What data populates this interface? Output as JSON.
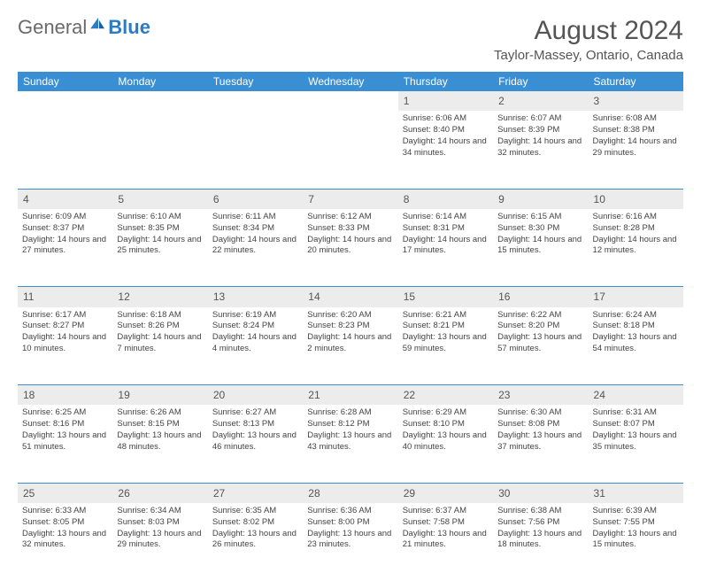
{
  "logo": {
    "text1": "General",
    "text2": "Blue"
  },
  "title": "August 2024",
  "location": "Taylor-Massey, Ontario, Canada",
  "colors": {
    "header_bg": "#3a8fd4",
    "daynum_bg": "#ececec",
    "text": "#444444"
  },
  "weekdays": [
    "Sunday",
    "Monday",
    "Tuesday",
    "Wednesday",
    "Thursday",
    "Friday",
    "Saturday"
  ],
  "weeks": [
    [
      null,
      null,
      null,
      null,
      {
        "n": "1",
        "sr": "6:06 AM",
        "ss": "8:40 PM",
        "dl": "14 hours and 34 minutes."
      },
      {
        "n": "2",
        "sr": "6:07 AM",
        "ss": "8:39 PM",
        "dl": "14 hours and 32 minutes."
      },
      {
        "n": "3",
        "sr": "6:08 AM",
        "ss": "8:38 PM",
        "dl": "14 hours and 29 minutes."
      }
    ],
    [
      {
        "n": "4",
        "sr": "6:09 AM",
        "ss": "8:37 PM",
        "dl": "14 hours and 27 minutes."
      },
      {
        "n": "5",
        "sr": "6:10 AM",
        "ss": "8:35 PM",
        "dl": "14 hours and 25 minutes."
      },
      {
        "n": "6",
        "sr": "6:11 AM",
        "ss": "8:34 PM",
        "dl": "14 hours and 22 minutes."
      },
      {
        "n": "7",
        "sr": "6:12 AM",
        "ss": "8:33 PM",
        "dl": "14 hours and 20 minutes."
      },
      {
        "n": "8",
        "sr": "6:14 AM",
        "ss": "8:31 PM",
        "dl": "14 hours and 17 minutes."
      },
      {
        "n": "9",
        "sr": "6:15 AM",
        "ss": "8:30 PM",
        "dl": "14 hours and 15 minutes."
      },
      {
        "n": "10",
        "sr": "6:16 AM",
        "ss": "8:28 PM",
        "dl": "14 hours and 12 minutes."
      }
    ],
    [
      {
        "n": "11",
        "sr": "6:17 AM",
        "ss": "8:27 PM",
        "dl": "14 hours and 10 minutes."
      },
      {
        "n": "12",
        "sr": "6:18 AM",
        "ss": "8:26 PM",
        "dl": "14 hours and 7 minutes."
      },
      {
        "n": "13",
        "sr": "6:19 AM",
        "ss": "8:24 PM",
        "dl": "14 hours and 4 minutes."
      },
      {
        "n": "14",
        "sr": "6:20 AM",
        "ss": "8:23 PM",
        "dl": "14 hours and 2 minutes."
      },
      {
        "n": "15",
        "sr": "6:21 AM",
        "ss": "8:21 PM",
        "dl": "13 hours and 59 minutes."
      },
      {
        "n": "16",
        "sr": "6:22 AM",
        "ss": "8:20 PM",
        "dl": "13 hours and 57 minutes."
      },
      {
        "n": "17",
        "sr": "6:24 AM",
        "ss": "8:18 PM",
        "dl": "13 hours and 54 minutes."
      }
    ],
    [
      {
        "n": "18",
        "sr": "6:25 AM",
        "ss": "8:16 PM",
        "dl": "13 hours and 51 minutes."
      },
      {
        "n": "19",
        "sr": "6:26 AM",
        "ss": "8:15 PM",
        "dl": "13 hours and 48 minutes."
      },
      {
        "n": "20",
        "sr": "6:27 AM",
        "ss": "8:13 PM",
        "dl": "13 hours and 46 minutes."
      },
      {
        "n": "21",
        "sr": "6:28 AM",
        "ss": "8:12 PM",
        "dl": "13 hours and 43 minutes."
      },
      {
        "n": "22",
        "sr": "6:29 AM",
        "ss": "8:10 PM",
        "dl": "13 hours and 40 minutes."
      },
      {
        "n": "23",
        "sr": "6:30 AM",
        "ss": "8:08 PM",
        "dl": "13 hours and 37 minutes."
      },
      {
        "n": "24",
        "sr": "6:31 AM",
        "ss": "8:07 PM",
        "dl": "13 hours and 35 minutes."
      }
    ],
    [
      {
        "n": "25",
        "sr": "6:33 AM",
        "ss": "8:05 PM",
        "dl": "13 hours and 32 minutes."
      },
      {
        "n": "26",
        "sr": "6:34 AM",
        "ss": "8:03 PM",
        "dl": "13 hours and 29 minutes."
      },
      {
        "n": "27",
        "sr": "6:35 AM",
        "ss": "8:02 PM",
        "dl": "13 hours and 26 minutes."
      },
      {
        "n": "28",
        "sr": "6:36 AM",
        "ss": "8:00 PM",
        "dl": "13 hours and 23 minutes."
      },
      {
        "n": "29",
        "sr": "6:37 AM",
        "ss": "7:58 PM",
        "dl": "13 hours and 21 minutes."
      },
      {
        "n": "30",
        "sr": "6:38 AM",
        "ss": "7:56 PM",
        "dl": "13 hours and 18 minutes."
      },
      {
        "n": "31",
        "sr": "6:39 AM",
        "ss": "7:55 PM",
        "dl": "13 hours and 15 minutes."
      }
    ]
  ],
  "labels": {
    "sunrise": "Sunrise:",
    "sunset": "Sunset:",
    "daylight": "Daylight:"
  }
}
